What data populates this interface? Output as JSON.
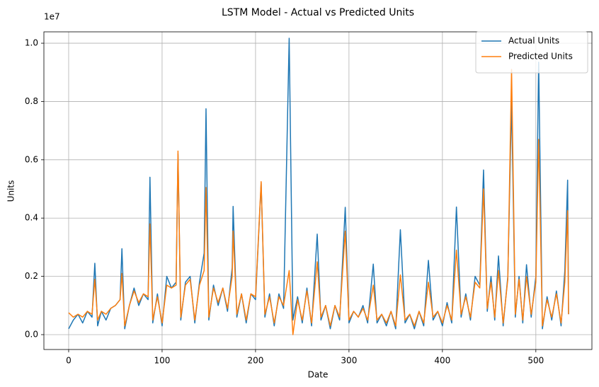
{
  "chart_data": {
    "type": "line",
    "title": "LSTM Model - Actual vs Predicted Units",
    "x_label": "Date",
    "y_label": "Units",
    "y_offset_label": "1e7",
    "x": [
      0,
      5,
      10,
      15,
      20,
      25,
      28,
      31,
      35,
      40,
      45,
      50,
      55,
      57,
      60,
      65,
      70,
      75,
      80,
      85,
      87,
      90,
      95,
      100,
      105,
      110,
      115,
      117,
      120,
      125,
      130,
      135,
      140,
      145,
      147,
      150,
      155,
      160,
      165,
      170,
      175,
      176,
      180,
      185,
      190,
      195,
      200,
      206,
      210,
      215,
      220,
      225,
      230,
      236,
      240,
      245,
      250,
      255,
      260,
      266,
      270,
      275,
      280,
      285,
      290,
      296,
      300,
      305,
      310,
      315,
      320,
      326,
      330,
      335,
      340,
      345,
      350,
      355,
      360,
      365,
      370,
      375,
      380,
      385,
      390,
      395,
      400,
      405,
      410,
      415,
      420,
      425,
      430,
      435,
      440,
      444,
      448,
      452,
      456,
      460,
      465,
      470,
      474,
      478,
      482,
      486,
      490,
      495,
      500,
      503,
      507,
      512,
      517,
      522,
      527,
      531,
      534,
      535
    ],
    "series": [
      {
        "name": "Actual Units",
        "color": "#1f77b4",
        "values": [
          0.02,
          0.05,
          0.07,
          0.04,
          0.08,
          0.06,
          0.245,
          0.03,
          0.08,
          0.05,
          0.09,
          0.1,
          0.12,
          0.295,
          0.02,
          0.1,
          0.16,
          0.1,
          0.14,
          0.12,
          0.54,
          0.04,
          0.14,
          0.03,
          0.2,
          0.16,
          0.18,
          0.62,
          0.05,
          0.18,
          0.2,
          0.04,
          0.18,
          0.28,
          0.775,
          0.05,
          0.17,
          0.1,
          0.16,
          0.08,
          0.23,
          0.44,
          0.06,
          0.14,
          0.04,
          0.14,
          0.12,
          0.52,
          0.06,
          0.14,
          0.03,
          0.14,
          0.09,
          1.017,
          0.05,
          0.13,
          0.04,
          0.16,
          0.03,
          0.345,
          0.05,
          0.1,
          0.02,
          0.1,
          0.05,
          0.437,
          0.04,
          0.08,
          0.06,
          0.1,
          0.04,
          0.242,
          0.04,
          0.07,
          0.03,
          0.08,
          0.02,
          0.36,
          0.04,
          0.07,
          0.02,
          0.08,
          0.03,
          0.255,
          0.05,
          0.08,
          0.03,
          0.11,
          0.04,
          0.438,
          0.06,
          0.14,
          0.05,
          0.2,
          0.17,
          0.565,
          0.08,
          0.2,
          0.05,
          0.27,
          0.03,
          0.2,
          0.8,
          0.06,
          0.2,
          0.04,
          0.24,
          0.06,
          0.2,
          0.935,
          0.02,
          0.13,
          0.05,
          0.15,
          0.03,
          0.22,
          0.53,
          0.07
        ]
      },
      {
        "name": "Predicted Units",
        "color": "#ff7f0e",
        "values": [
          0.075,
          0.06,
          0.07,
          0.06,
          0.08,
          0.07,
          0.19,
          0.05,
          0.08,
          0.07,
          0.09,
          0.1,
          0.12,
          0.21,
          0.03,
          0.1,
          0.15,
          0.11,
          0.14,
          0.13,
          0.38,
          0.05,
          0.13,
          0.04,
          0.17,
          0.16,
          0.17,
          0.63,
          0.06,
          0.17,
          0.19,
          0.05,
          0.17,
          0.22,
          0.505,
          0.06,
          0.16,
          0.11,
          0.16,
          0.09,
          0.2,
          0.355,
          0.07,
          0.14,
          0.05,
          0.14,
          0.13,
          0.525,
          0.07,
          0.13,
          0.04,
          0.13,
          0.1,
          0.22,
          0.0,
          0.12,
          0.05,
          0.15,
          0.04,
          0.25,
          0.06,
          0.1,
          0.03,
          0.1,
          0.06,
          0.355,
          0.05,
          0.08,
          0.06,
          0.09,
          0.05,
          0.17,
          0.05,
          0.07,
          0.04,
          0.08,
          0.03,
          0.205,
          0.05,
          0.07,
          0.03,
          0.08,
          0.04,
          0.18,
          0.06,
          0.08,
          0.04,
          0.1,
          0.05,
          0.29,
          0.07,
          0.13,
          0.06,
          0.18,
          0.16,
          0.5,
          0.09,
          0.18,
          0.06,
          0.22,
          0.04,
          0.19,
          0.91,
          0.07,
          0.19,
          0.05,
          0.2,
          0.07,
          0.18,
          0.67,
          0.03,
          0.12,
          0.06,
          0.14,
          0.04,
          0.18,
          0.425,
          0.07
        ]
      }
    ],
    "xlim": [
      -26.5,
      560
    ],
    "ylim": [
      -0.051,
      1.039
    ],
    "xticks": [
      0,
      100,
      200,
      300,
      400,
      500
    ],
    "yticks": [
      {
        "value": 0,
        "label": "0.0"
      },
      {
        "value": 0.2,
        "label": "0.2"
      },
      {
        "value": 0.4,
        "label": "0.4"
      },
      {
        "value": 0.6,
        "label": "0.6"
      },
      {
        "value": 0.8,
        "label": "0.8"
      },
      {
        "value": 1.0,
        "label": "1.0"
      }
    ],
    "grid": true,
    "legend": "upper right"
  }
}
